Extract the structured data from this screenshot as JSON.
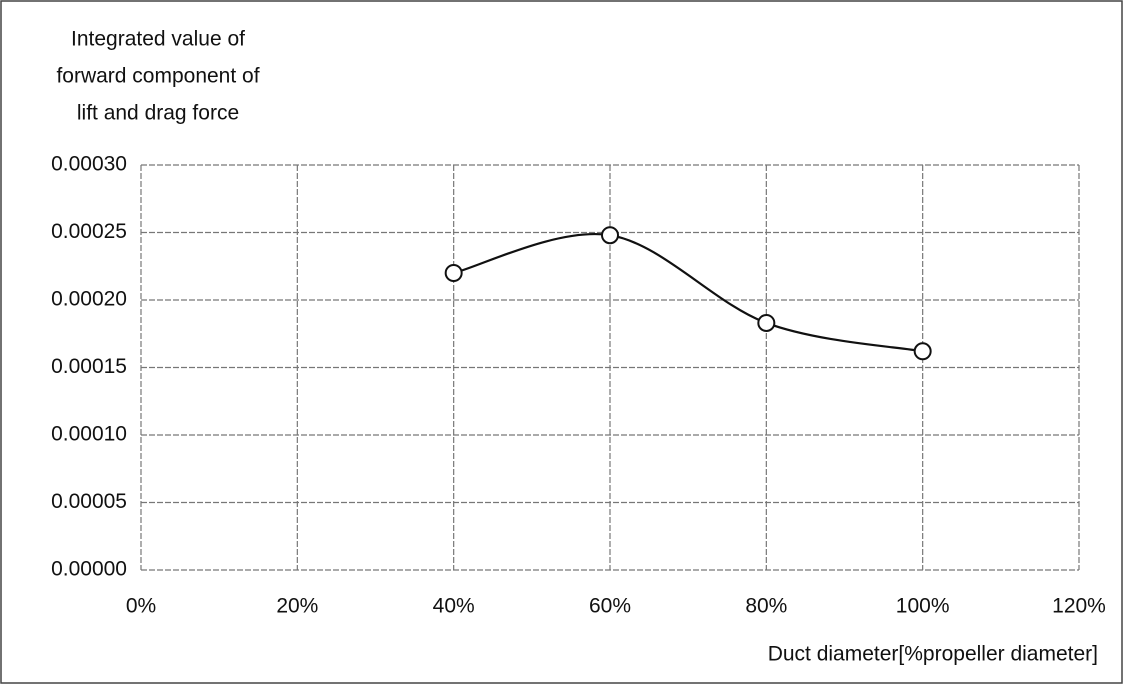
{
  "chart_data": {
    "type": "line",
    "yaxis_label": [
      "Integrated value of",
      "forward component of",
      "lift and drag force"
    ],
    "xaxis_label": "Duct diameter[%propeller diameter]",
    "x": [
      40,
      60,
      80,
      100
    ],
    "series": [
      {
        "name": null,
        "color": "#111111",
        "values": [
          0.00022,
          0.000248,
          0.000183,
          0.000162
        ]
      }
    ],
    "smooth": true,
    "xlim": [
      0,
      120
    ],
    "xticks": [
      {
        "value": 0,
        "label": "0%"
      },
      {
        "value": 20,
        "label": "20%"
      },
      {
        "value": 40,
        "label": "40%"
      },
      {
        "value": 60,
        "label": "60%"
      },
      {
        "value": 80,
        "label": "80%"
      },
      {
        "value": 100,
        "label": "100%"
      },
      {
        "value": 120,
        "label": "120%"
      }
    ],
    "ylim": [
      0,
      0.0003
    ],
    "yticks": [
      {
        "value": 0,
        "label": "0.00000"
      },
      {
        "value": 5e-05,
        "label": "0.00005"
      },
      {
        "value": 0.0001,
        "label": "0.00010"
      },
      {
        "value": 0.00015,
        "label": "0.00015"
      },
      {
        "value": 0.0002,
        "label": "0.00020"
      },
      {
        "value": 0.00025,
        "label": "0.00025"
      },
      {
        "value": 0.0003,
        "label": "0.00030"
      }
    ],
    "grid": true
  }
}
